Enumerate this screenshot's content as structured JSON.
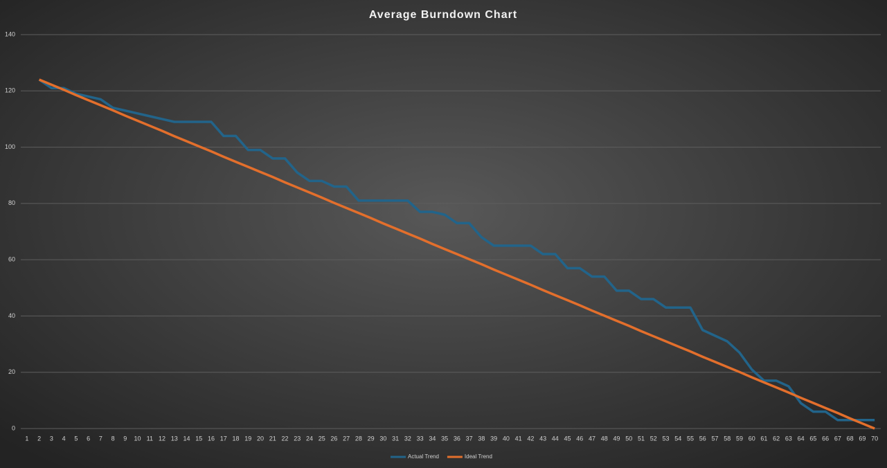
{
  "chart_data": {
    "type": "line",
    "title": "Average Burndown Chart",
    "categories": [
      1,
      2,
      3,
      4,
      5,
      6,
      7,
      8,
      9,
      10,
      11,
      12,
      13,
      14,
      15,
      16,
      17,
      18,
      19,
      20,
      21,
      22,
      23,
      24,
      25,
      26,
      27,
      28,
      29,
      30,
      31,
      32,
      33,
      34,
      35,
      36,
      37,
      38,
      39,
      40,
      41,
      42,
      43,
      44,
      45,
      46,
      47,
      48,
      49,
      50,
      51,
      52,
      53,
      54,
      55,
      56,
      57,
      58,
      59,
      60,
      61,
      62,
      63,
      64,
      65,
      66,
      67,
      68,
      69,
      70
    ],
    "series": [
      {
        "name": "Actual Trend",
        "color": "#22648a",
        "values": [
          null,
          124,
          121,
          121,
          119,
          118,
          117,
          114,
          113,
          112,
          111,
          110,
          109,
          109,
          109,
          109,
          104,
          104,
          99,
          99,
          96,
          96,
          91,
          88,
          88,
          86,
          86,
          81,
          81,
          81,
          81,
          81,
          77,
          77,
          76,
          73,
          73,
          68,
          65,
          65,
          65,
          65,
          62,
          62,
          57,
          57,
          54,
          54,
          49,
          49,
          46,
          46,
          43,
          43,
          43,
          35,
          33,
          31,
          27,
          21,
          17,
          17,
          15,
          9,
          6,
          6,
          3,
          3,
          3,
          3
        ]
      },
      {
        "name": "Ideal Trend",
        "color": "#e36f2c",
        "values": [
          null,
          124,
          122.2,
          120.4,
          118.5,
          116.7,
          114.9,
          113.1,
          111.2,
          109.4,
          107.6,
          105.8,
          103.9,
          102.1,
          100.3,
          98.5,
          96.6,
          94.8,
          93.0,
          91.2,
          89.4,
          87.5,
          85.7,
          83.9,
          82.1,
          80.2,
          78.4,
          76.6,
          74.8,
          72.9,
          71.1,
          69.3,
          67.5,
          65.6,
          63.8,
          62.0,
          60.2,
          58.4,
          56.5,
          54.7,
          52.9,
          51.1,
          49.2,
          47.4,
          45.6,
          43.8,
          41.9,
          40.1,
          38.3,
          36.5,
          34.6,
          32.8,
          31.0,
          29.2,
          27.4,
          25.5,
          23.7,
          21.9,
          20.1,
          18.2,
          16.4,
          14.6,
          12.8,
          10.9,
          9.1,
          7.3,
          5.5,
          3.6,
          1.8,
          0
        ]
      }
    ],
    "ylim": [
      0,
      140
    ],
    "yticks": [
      0,
      20,
      40,
      60,
      80,
      100,
      120,
      140
    ],
    "grid": true,
    "legend": "bottom"
  }
}
